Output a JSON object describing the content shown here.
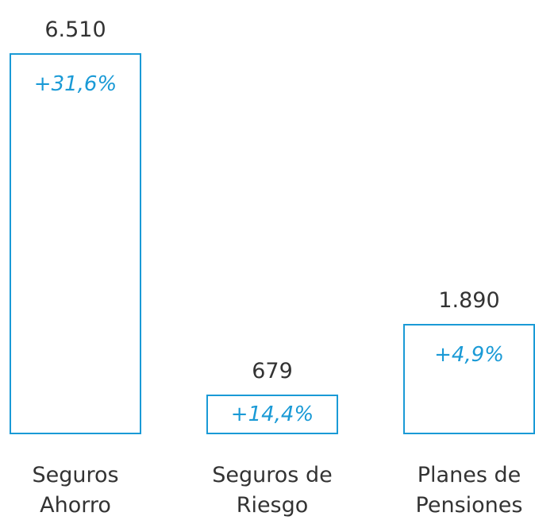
{
  "chart_data": {
    "type": "bar",
    "categories": [
      "Seguros Ahorro",
      "Seguros de Riesgo",
      "Planes de Pensiones"
    ],
    "values": [
      6510,
      679,
      1890
    ],
    "value_labels": [
      "6.510",
      "679",
      "1.890"
    ],
    "annotations": [
      "+31,6%",
      "+14,4%",
      "+4,9%"
    ],
    "color": "#1a9ad6"
  }
}
